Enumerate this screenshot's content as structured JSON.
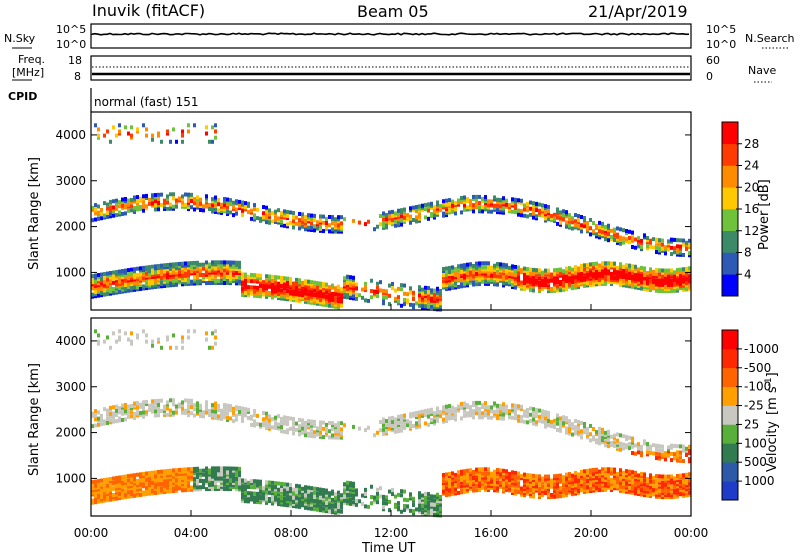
{
  "header": {
    "station": "Inuvik (fitACF)",
    "beam": "Beam 05",
    "date": "21/Apr/2019"
  },
  "panels": {
    "nsky": {
      "label": "N.Sky",
      "left_ticks": [
        "10^5",
        "10^0"
      ],
      "right_ticks": [
        "10^5",
        "10^0"
      ],
      "right_label": "N.Search"
    },
    "freq": {
      "label_line1": "Freq.",
      "label_line2": "[MHz]",
      "left_ticks": [
        "18",
        "8"
      ],
      "right_ticks": [
        "60",
        "0"
      ],
      "right_label": "Nave"
    },
    "cpid": {
      "label": "CPID",
      "mode": "normal (fast) 151"
    }
  },
  "chart_data": [
    {
      "type": "heatmap",
      "title": "",
      "xlabel": "",
      "ylabel": "Slant Range [km]",
      "xlim": [
        "00:00",
        "24:00"
      ],
      "ylim": [
        180,
        4500
      ],
      "y_ticks": [
        "1000",
        "2000",
        "3000",
        "4000"
      ],
      "colorbar": {
        "label": "Power [dB]",
        "tick_labels": [
          "4",
          "8",
          "12",
          "16",
          "20",
          "24",
          "28"
        ],
        "colors": [
          "#0000ff",
          "#2c5ab4",
          "#3c8a68",
          "#6ec23c",
          "#ffc800",
          "#ff8c00",
          "#ff3c00",
          "#ff0000"
        ]
      },
      "features": [
        {
          "name": "lower band",
          "start": "00:00",
          "end": "24:00",
          "range_km": [
            300,
            1300
          ]
        },
        {
          "name": "middle band",
          "start": "00:00",
          "end": "23:50",
          "range_km": [
            1700,
            2700
          ]
        },
        {
          "name": "sporadic high range",
          "start": "00:10",
          "end": "05:00",
          "range_km": [
            3800,
            4300
          ]
        }
      ]
    },
    {
      "type": "heatmap",
      "title": "",
      "xlabel": "Time UT",
      "ylabel": "Slant Range [km]",
      "xlim": [
        "00:00",
        "24:00"
      ],
      "ylim": [
        180,
        4500
      ],
      "y_ticks": [
        "1000",
        "2000",
        "3000",
        "4000"
      ],
      "x_ticks": [
        "00:00",
        "04:00",
        "08:00",
        "12:00",
        "16:00",
        "20:00",
        "00:00"
      ],
      "colorbar": {
        "label": "Velocity",
        "unit_text": "[m s",
        "unit_sup": "-1",
        "tick_labels": [
          "1000",
          "500",
          "100",
          "25",
          "-25",
          "-100",
          "-500",
          "-1000"
        ],
        "colors": [
          "#1e3cc8",
          "#2c5aa8",
          "#327a50",
          "#58b03a",
          "#c8c8c0",
          "#ffa000",
          "#ff6400",
          "#ff2800",
          "#ff0000"
        ]
      }
    }
  ]
}
